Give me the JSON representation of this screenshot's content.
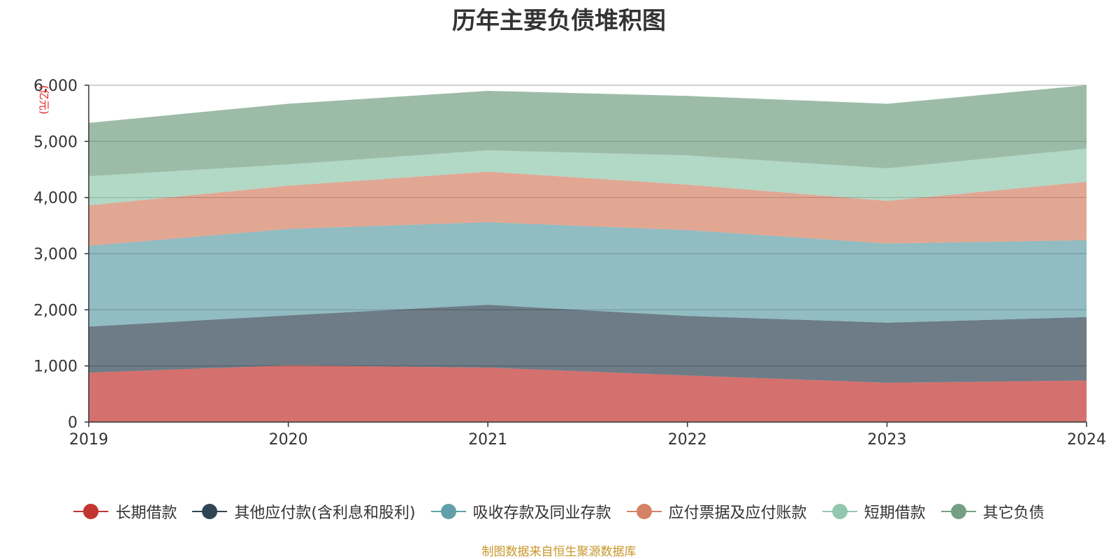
{
  "chart_data": {
    "type": "area",
    "stacked": true,
    "title": "历年主要负债堆积图",
    "ylabel": "(亿元)",
    "xlabel": "",
    "x": [
      "2019",
      "2020",
      "2021",
      "2022",
      "2023",
      "2024"
    ],
    "ylim": [
      0,
      6000
    ],
    "yticks": [
      0,
      1000,
      2000,
      3000,
      4000,
      5000,
      6000
    ],
    "ytick_labels": [
      "0",
      "1,000",
      "2,000",
      "3,000",
      "4,000",
      "5,000",
      "6,000"
    ],
    "grid": true,
    "legend_position": "bottom",
    "series": [
      {
        "name": "长期借款",
        "color": "#c23531",
        "values": [
          880,
          1010,
          970,
          830,
          700,
          740
        ]
      },
      {
        "name": "其他应付款(含利息和股利)",
        "color": "#2f4554",
        "values": [
          820,
          890,
          1120,
          1060,
          1070,
          1130
        ]
      },
      {
        "name": "吸收存款及同业存款",
        "color": "#61a0a8",
        "values": [
          1440,
          1540,
          1470,
          1530,
          1410,
          1370
        ]
      },
      {
        "name": "应付票据及应付账款",
        "color": "#d48265",
        "values": [
          720,
          770,
          900,
          810,
          760,
          1040
        ]
      },
      {
        "name": "短期借款",
        "color": "#91c7ae",
        "values": [
          520,
          380,
          380,
          520,
          580,
          590
        ]
      },
      {
        "name": "其它负债",
        "color": "#749f83",
        "values": [
          950,
          1080,
          1060,
          1060,
          1150,
          1130
        ]
      }
    ]
  },
  "source_note": "制图数据来自恒生聚源数据库"
}
